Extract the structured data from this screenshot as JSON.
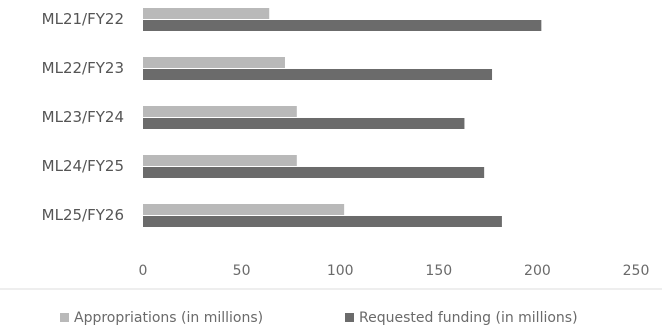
{
  "chart_data": {
    "type": "bar",
    "orientation": "horizontal",
    "categories": [
      "ML21/FY22",
      "ML22/FY23",
      "ML23/FY24",
      "ML24/FY25",
      "ML25/FY26"
    ],
    "series": [
      {
        "name": "Appropriations (in millions)",
        "values": [
          64,
          72,
          78,
          78,
          102
        ],
        "color": "#b9b9b9"
      },
      {
        "name": "Requested funding (in millions)",
        "values": [
          202,
          177,
          163,
          173,
          182
        ],
        "color": "#6b6b6b"
      }
    ],
    "xlim": [
      0,
      250
    ],
    "xticks": [
      "0",
      "50",
      "100",
      "150",
      "200",
      "250"
    ],
    "grid": false,
    "legend_position": "bottom"
  }
}
